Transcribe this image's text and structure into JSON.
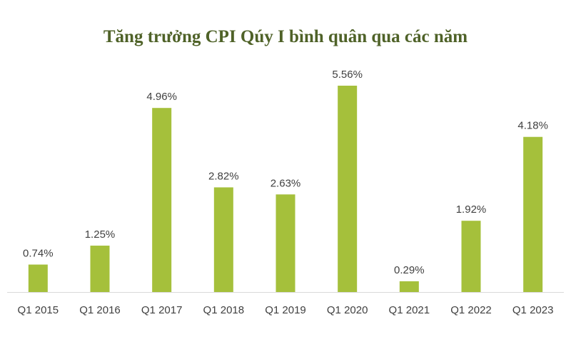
{
  "chart_data": {
    "type": "bar",
    "title": "Tăng trưởng CPI Qúy I bình quân qua các năm",
    "categories": [
      "Q1 2015",
      "Q1 2016",
      "Q1 2017",
      "Q1 2018",
      "Q1 2019",
      "Q1 2020",
      "Q1 2021",
      "Q1 2022",
      "Q1 2023"
    ],
    "values": [
      0.74,
      1.25,
      4.96,
      2.82,
      2.63,
      5.56,
      0.29,
      1.92,
      4.18
    ],
    "value_labels": [
      "0.74%",
      "1.25%",
      "4.96%",
      "2.82%",
      "2.63%",
      "5.56%",
      "0.29%",
      "1.92%",
      "4.18%"
    ],
    "xlabel": "",
    "ylabel": "",
    "ylim": [
      0,
      5.56
    ],
    "grid": false,
    "legend": "none",
    "bar_color": "#a5c03b",
    "title_color": "#4f6228"
  }
}
